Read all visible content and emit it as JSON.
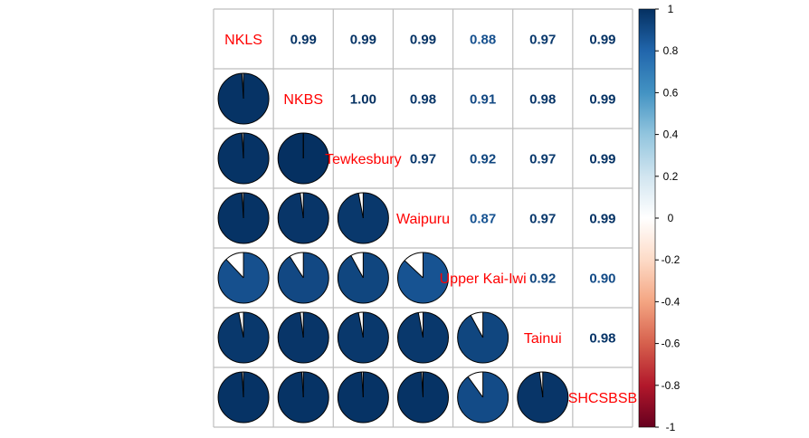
{
  "chart_data": {
    "type": "heatmap",
    "title": "",
    "variables": [
      "NKLS",
      "NKBS",
      "Tewkesbury",
      "Waipuru",
      "Upper Kai-Iwi",
      "Tainui",
      "SHCSBSB"
    ],
    "matrix": [
      [
        1.0,
        0.99,
        0.99,
        0.99,
        0.88,
        0.97,
        0.99
      ],
      [
        0.99,
        1.0,
        1.0,
        0.98,
        0.91,
        0.98,
        0.99
      ],
      [
        0.99,
        1.0,
        1.0,
        0.97,
        0.92,
        0.97,
        0.99
      ],
      [
        0.99,
        0.98,
        0.97,
        1.0,
        0.87,
        0.97,
        0.99
      ],
      [
        0.88,
        0.91,
        0.92,
        0.87,
        1.0,
        0.92,
        0.9
      ],
      [
        0.97,
        0.98,
        0.97,
        0.97,
        0.92,
        1.0,
        0.98
      ],
      [
        0.99,
        0.99,
        0.99,
        0.99,
        0.9,
        0.98,
        1.0
      ]
    ],
    "upper_labels": [
      [
        "0.99",
        "0.99",
        "0.99",
        "0.88",
        "0.97",
        "0.99"
      ],
      [
        "1.00",
        "0.98",
        "0.91",
        "0.98",
        "0.99"
      ],
      [
        "0.97",
        "0.92",
        "0.97",
        "0.99"
      ],
      [
        "0.87",
        "0.97",
        "0.99"
      ],
      [
        "0.92",
        "0.90"
      ],
      [
        "0.98"
      ]
    ],
    "lower_method": "pie",
    "upper_method": "number",
    "diagonal_label_color": "#ff0000",
    "color_scale": {
      "min": -1,
      "max": 1,
      "ticks": [
        "1",
        "0.8",
        "0.6",
        "0.4",
        "0.2",
        "0",
        "-0.2",
        "-0.4",
        "-0.6",
        "-0.8",
        "-1"
      ],
      "stops": [
        "#67001F",
        "#B2182B",
        "#D6604D",
        "#F4A582",
        "#FDDBC7",
        "#FFFFFF",
        "#D1E5F0",
        "#92C5DE",
        "#4393C3",
        "#2166AC",
        "#053061"
      ]
    },
    "grid": true
  }
}
